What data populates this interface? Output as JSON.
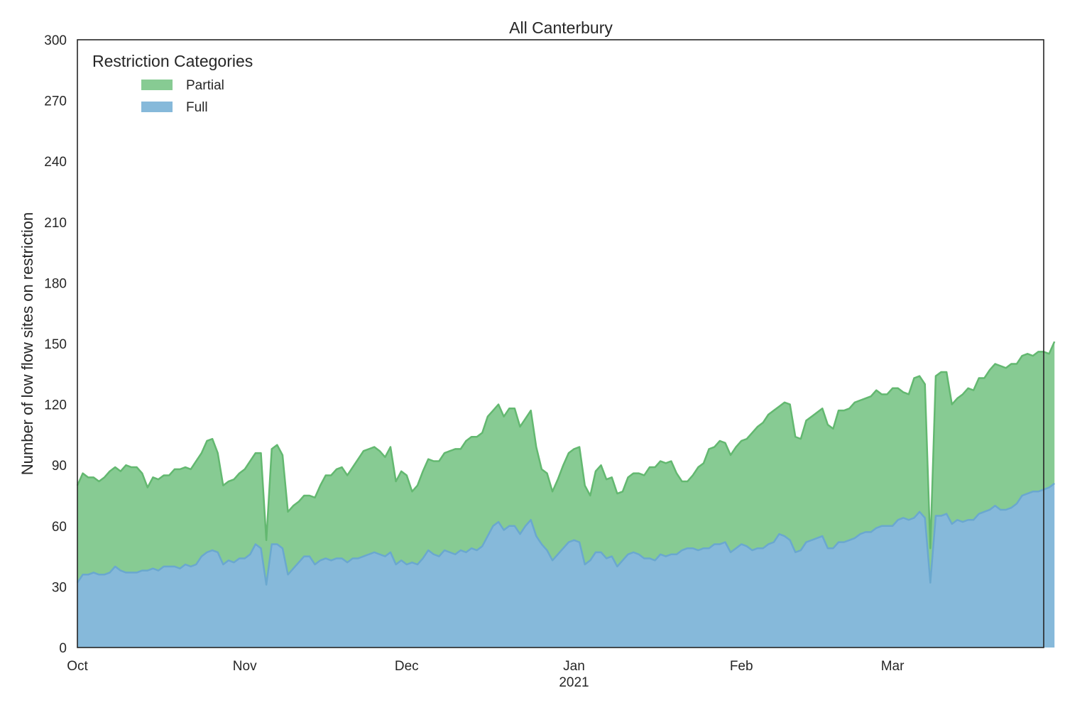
{
  "chart_data": {
    "type": "area",
    "stacked": true,
    "title": "All Canterbury",
    "xlabel": "",
    "ylabel": "Number of low flow sites on restriction",
    "ylim": [
      0,
      300
    ],
    "yticks": [
      0,
      30,
      60,
      90,
      120,
      150,
      180,
      210,
      240,
      270,
      300
    ],
    "xlim": [
      "2020-10-01",
      "2021-03-29"
    ],
    "xticks": [
      {
        "date": "2020-10-01",
        "label": "Oct",
        "sublabel": ""
      },
      {
        "date": "2020-11-01",
        "label": "Nov",
        "sublabel": ""
      },
      {
        "date": "2020-12-01",
        "label": "Dec",
        "sublabel": ""
      },
      {
        "date": "2021-01-01",
        "label": "Jan",
        "sublabel": "2021"
      },
      {
        "date": "2021-02-01",
        "label": "Feb",
        "sublabel": ""
      },
      {
        "date": "2021-03-01",
        "label": "Mar",
        "sublabel": ""
      }
    ],
    "grid": false,
    "legend": {
      "title": "Restriction Categories",
      "position": "top-left"
    },
    "x_start": "2020-10-01",
    "x_step_days": 1,
    "series": [
      {
        "name": "Full",
        "color": "#86b9da",
        "line_color": "#6aa8cf",
        "values": [
          32,
          36,
          36,
          37,
          36,
          36,
          37,
          40,
          38,
          37,
          37,
          37,
          38,
          38,
          39,
          38,
          40,
          40,
          40,
          39,
          41,
          40,
          41,
          45,
          47,
          48,
          47,
          41,
          43,
          42,
          44,
          44,
          46,
          51,
          49,
          31,
          51,
          51,
          49,
          36,
          39,
          42,
          45,
          45,
          41,
          43,
          44,
          43,
          44,
          44,
          42,
          44,
          44,
          45,
          46,
          47,
          46,
          45,
          47,
          41,
          43,
          41,
          42,
          41,
          44,
          48,
          46,
          45,
          48,
          47,
          46,
          48,
          47,
          49,
          48,
          50,
          55,
          60,
          62,
          58,
          60,
          60,
          56,
          60,
          63,
          55,
          51,
          48,
          43,
          46,
          49,
          52,
          53,
          52,
          41,
          43,
          47,
          47,
          44,
          45,
          40,
          43,
          46,
          47,
          46,
          44,
          44,
          43,
          46,
          45,
          46,
          46,
          48,
          49,
          49,
          48,
          49,
          49,
          51,
          51,
          52,
          47,
          49,
          51,
          50,
          48,
          49,
          49,
          51,
          52,
          56,
          55,
          53,
          47,
          48,
          52,
          53,
          54,
          55,
          49,
          49,
          52,
          52,
          53,
          54,
          56,
          57,
          57,
          59,
          60,
          60,
          60,
          63,
          64,
          63,
          64,
          67,
          64,
          32,
          65,
          65,
          66,
          61,
          63,
          62,
          63,
          63,
          66,
          67,
          68,
          70,
          68,
          68,
          69,
          71,
          75,
          76,
          77,
          77,
          78,
          79,
          81
        ]
      },
      {
        "name": "Partial",
        "color": "#87cb93",
        "line_color": "#63b870",
        "totals": [
          80,
          86,
          84,
          84,
          82,
          84,
          87,
          89,
          87,
          90,
          89,
          89,
          86,
          79,
          84,
          83,
          85,
          85,
          88,
          88,
          89,
          88,
          92,
          96,
          102,
          103,
          96,
          80,
          82,
          83,
          86,
          88,
          92,
          96,
          96,
          53,
          98,
          100,
          95,
          67,
          70,
          72,
          75,
          75,
          74,
          80,
          85,
          85,
          88,
          89,
          85,
          89,
          93,
          97,
          98,
          99,
          97,
          94,
          99,
          82,
          87,
          85,
          77,
          80,
          87,
          93,
          92,
          92,
          96,
          97,
          98,
          98,
          102,
          104,
          104,
          106,
          114,
          117,
          120,
          114,
          118,
          118,
          109,
          113,
          117,
          99,
          88,
          86,
          77,
          83,
          90,
          96,
          98,
          99,
          80,
          75,
          87,
          90,
          83,
          84,
          76,
          77,
          84,
          86,
          86,
          85,
          89,
          89,
          92,
          91,
          92,
          86,
          82,
          82,
          85,
          89,
          91,
          98,
          99,
          102,
          101,
          95,
          99,
          102,
          103,
          106,
          109,
          111,
          115,
          117,
          119,
          121,
          120,
          104,
          103,
          112,
          114,
          116,
          118,
          110,
          108,
          117,
          117,
          118,
          121,
          122,
          123,
          124,
          127,
          125,
          125,
          128,
          128,
          126,
          125,
          133,
          134,
          130,
          49,
          134,
          136,
          136,
          120,
          123,
          125,
          128,
          127,
          133,
          133,
          137,
          140,
          139,
          138,
          140,
          140,
          144,
          145,
          144,
          146,
          146,
          145,
          151
        ]
      }
    ]
  }
}
